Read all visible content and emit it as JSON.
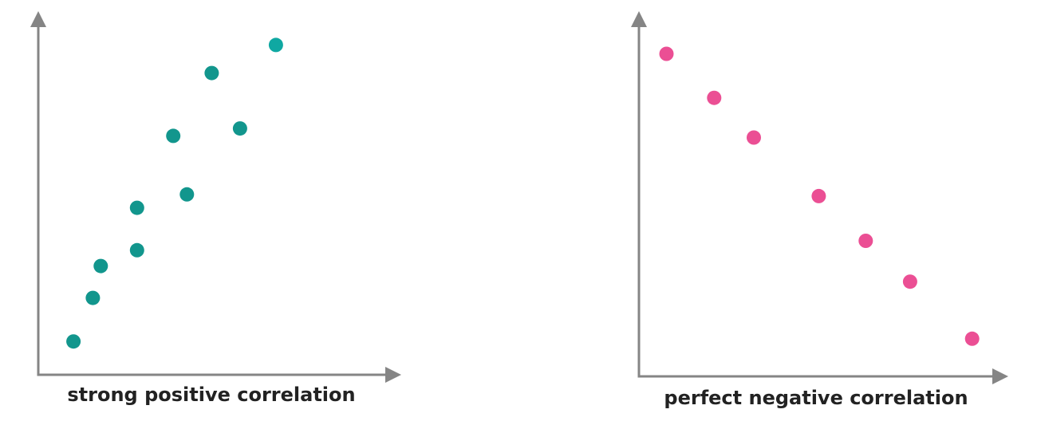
{
  "chart_data": [
    {
      "type": "scatter",
      "title": "strong positive correlation",
      "xlabel": "",
      "ylabel": "",
      "xlim": [
        0,
        100
      ],
      "ylim": [
        0,
        100
      ],
      "grid": false,
      "axis_color": "#858585",
      "points": [
        {
          "x": 9.8,
          "y": 9.5,
          "color": "#12968d"
        },
        {
          "x": 15.2,
          "y": 21.9,
          "color": "#12968d"
        },
        {
          "x": 17.4,
          "y": 31.0,
          "color": "#12968d"
        },
        {
          "x": 27.5,
          "y": 35.5,
          "color": "#12968d"
        },
        {
          "x": 27.5,
          "y": 47.6,
          "color": "#12968d"
        },
        {
          "x": 41.4,
          "y": 51.4,
          "color": "#12968d"
        },
        {
          "x": 37.6,
          "y": 68.1,
          "color": "#12968d"
        },
        {
          "x": 56.2,
          "y": 70.2,
          "color": "#12968d"
        },
        {
          "x": 48.3,
          "y": 86.0,
          "color": "#12968d"
        },
        {
          "x": 66.2,
          "y": 94.0,
          "color": "#0fa8a2"
        }
      ]
    },
    {
      "type": "scatter",
      "title": "perfect negative correlation",
      "xlabel": "",
      "ylabel": "",
      "xlim": [
        0,
        100
      ],
      "ylim": [
        0,
        100
      ],
      "grid": false,
      "axis_color": "#858585",
      "points": [
        {
          "x": 7.5,
          "y": 90.9,
          "color": "#eb4f94"
        },
        {
          "x": 20.5,
          "y": 78.5,
          "color": "#eb4f94"
        },
        {
          "x": 31.3,
          "y": 67.3,
          "color": "#eb4f94"
        },
        {
          "x": 49.0,
          "y": 50.8,
          "color": "#eb4f94"
        },
        {
          "x": 61.8,
          "y": 38.2,
          "color": "#eb4f94"
        },
        {
          "x": 73.9,
          "y": 26.7,
          "color": "#eb4f94"
        },
        {
          "x": 90.8,
          "y": 10.6,
          "color": "#eb4f94"
        }
      ]
    }
  ]
}
